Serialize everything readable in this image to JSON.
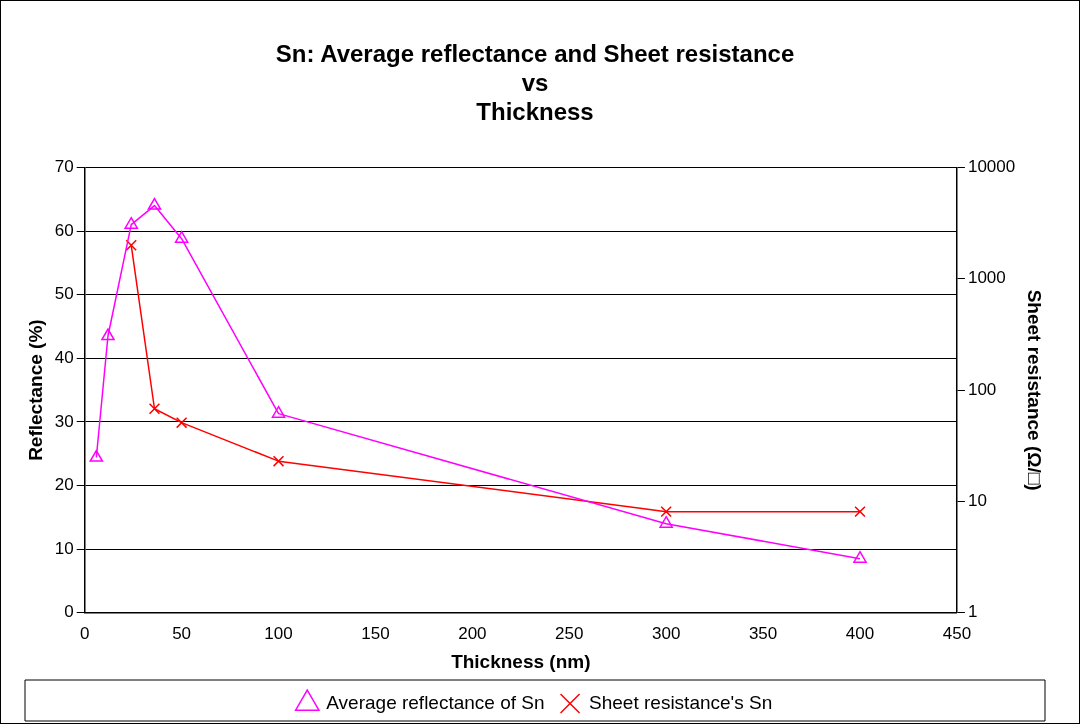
{
  "chart_data": {
    "type": "line",
    "title": "Sn: Average reflectance and Sheet resistance\nvs\nThickness",
    "xlabel": "Thickness (nm)",
    "ylabel": "Reflectance (%)",
    "y2label": "Sheet resistance (Ω/□)",
    "xlim": [
      0,
      450
    ],
    "xticks": [
      0,
      50,
      100,
      150,
      200,
      250,
      300,
      350,
      400,
      450
    ],
    "ylim": [
      0,
      70
    ],
    "yticks": [
      0,
      10,
      20,
      30,
      40,
      50,
      60,
      70
    ],
    "y2lim": [
      1,
      10000
    ],
    "y2ticks": [
      1,
      10,
      100,
      1000,
      10000
    ],
    "log": "y2",
    "grid": "y",
    "legend": "bottom",
    "line_style": "solid",
    "series": [
      {
        "name": "Average reflectance of Sn",
        "color": "#ff00ff",
        "marker": "triangle",
        "x": [
          6,
          12,
          24,
          36,
          50,
          100,
          300,
          400
        ],
        "values": [
          24.4,
          43.5,
          61,
          64,
          58.8,
          31.3,
          14,
          8.5
        ]
      },
      {
        "name": "Sheet resistance's Sn",
        "color": "#ff0000",
        "marker": "cross",
        "axis": "y2",
        "x": [
          24,
          36,
          50,
          100,
          300,
          400
        ],
        "values": [
          2000,
          68,
          51,
          23,
          8.1,
          8.1
        ]
      }
    ]
  }
}
